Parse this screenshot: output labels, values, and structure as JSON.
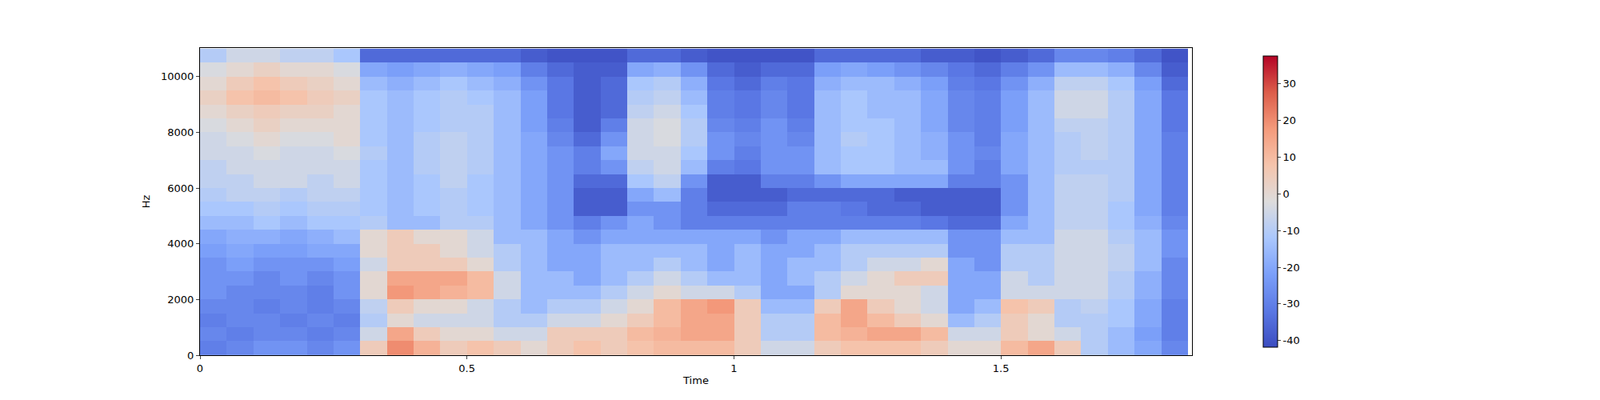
{
  "chart_data": {
    "type": "heatmap",
    "xlabel": "Time",
    "ylabel": "Hz",
    "xlim": [
      0,
      1.858
    ],
    "ylim": [
      0,
      11025
    ],
    "xticks": [
      0,
      0.5,
      1,
      1.5
    ],
    "yticks": [
      0,
      2000,
      4000,
      6000,
      8000,
      10000
    ],
    "zlim": [
      -41.8,
      37.6
    ],
    "zticks": [
      -40,
      -30,
      -20,
      -10,
      0,
      10,
      20,
      30
    ],
    "x": [
      0.025,
      0.075,
      0.125,
      0.175,
      0.225,
      0.275,
      0.325,
      0.375,
      0.425,
      0.475,
      0.525,
      0.575,
      0.625,
      0.675,
      0.725,
      0.775,
      0.825,
      0.875,
      0.925,
      0.975,
      1.025,
      1.075,
      1.125,
      1.175,
      1.225,
      1.275,
      1.325,
      1.375,
      1.425,
      1.475,
      1.525,
      1.575,
      1.625,
      1.675,
      1.725,
      1.775,
      1.825
    ],
    "y": [
      250,
      750,
      1250,
      1750,
      2250,
      2750,
      3250,
      3750,
      4250,
      4750,
      5250,
      5750,
      6250,
      6750,
      7250,
      7750,
      8250,
      8750,
      9250,
      9750,
      10250,
      10750
    ],
    "z": [
      [
        -30,
        -28,
        -25,
        -25,
        -28,
        -25,
        5,
        20,
        12,
        5,
        8,
        5,
        0,
        5,
        8,
        5,
        8,
        10,
        10,
        10,
        5,
        -5,
        -5,
        5,
        8,
        8,
        8,
        5,
        0,
        0,
        10,
        15,
        5,
        -10,
        -15,
        -20,
        -28
      ],
      [
        -28,
        -30,
        -28,
        -28,
        -30,
        -28,
        -5,
        15,
        5,
        0,
        0,
        -5,
        -5,
        5,
        5,
        5,
        10,
        12,
        15,
        15,
        5,
        -10,
        -10,
        10,
        12,
        15,
        15,
        10,
        -5,
        -5,
        5,
        0,
        -5,
        -10,
        -15,
        -22,
        -30
      ],
      [
        -30,
        -28,
        -28,
        -30,
        -28,
        -30,
        -10,
        0,
        -5,
        -5,
        -5,
        -10,
        -10,
        -5,
        -5,
        0,
        5,
        10,
        15,
        15,
        5,
        -10,
        -10,
        10,
        15,
        10,
        5,
        0,
        -15,
        -10,
        5,
        0,
        -10,
        -10,
        -12,
        -20,
        -30
      ],
      [
        -28,
        -28,
        -30,
        -28,
        -30,
        -28,
        -8,
        5,
        0,
        0,
        -5,
        -10,
        -15,
        -10,
        -10,
        -5,
        0,
        10,
        15,
        18,
        5,
        -15,
        -15,
        5,
        15,
        5,
        0,
        -5,
        -20,
        -15,
        8,
        5,
        -10,
        -8,
        -12,
        -20,
        -30
      ],
      [
        -25,
        -28,
        -28,
        -28,
        -30,
        -25,
        0,
        18,
        15,
        12,
        10,
        -5,
        -15,
        -15,
        -15,
        -10,
        -5,
        0,
        -5,
        -5,
        -10,
        -20,
        -20,
        -10,
        0,
        0,
        0,
        -5,
        -20,
        -20,
        -5,
        -5,
        -5,
        -5,
        -10,
        -18,
        -28
      ],
      [
        -25,
        -25,
        -28,
        -25,
        -28,
        -25,
        0,
        15,
        15,
        15,
        10,
        -5,
        -15,
        -15,
        -20,
        -15,
        -10,
        -5,
        -10,
        -15,
        -15,
        -20,
        -15,
        -10,
        -5,
        0,
        5,
        5,
        -20,
        -20,
        -5,
        -10,
        -5,
        -5,
        -10,
        -18,
        -28
      ],
      [
        -25,
        -22,
        -25,
        -25,
        -25,
        -22,
        -5,
        5,
        5,
        5,
        0,
        -10,
        -15,
        -20,
        -20,
        -15,
        -15,
        -10,
        -15,
        -20,
        -15,
        -20,
        -15,
        -15,
        -10,
        -5,
        -5,
        0,
        -20,
        -25,
        -10,
        -10,
        -5,
        -5,
        -8,
        -15,
        -28
      ],
      [
        -22,
        -20,
        -22,
        -22,
        -20,
        -20,
        0,
        5,
        5,
        0,
        -5,
        -10,
        -15,
        -20,
        -20,
        -15,
        -15,
        -15,
        -15,
        -20,
        -15,
        -20,
        -20,
        -15,
        -10,
        -10,
        -10,
        -10,
        -25,
        -25,
        -10,
        -10,
        -5,
        -5,
        -8,
        -15,
        -25
      ],
      [
        -20,
        -18,
        -18,
        -20,
        -18,
        -15,
        0,
        5,
        0,
        0,
        -5,
        -15,
        -15,
        -20,
        -25,
        -20,
        -20,
        -20,
        -20,
        -20,
        -20,
        -25,
        -20,
        -20,
        -15,
        -15,
        -15,
        -15,
        -25,
        -25,
        -15,
        -15,
        -5,
        -5,
        -10,
        -15,
        -25
      ],
      [
        -15,
        -15,
        -12,
        -15,
        -12,
        -12,
        -10,
        -15,
        -15,
        -10,
        -10,
        -15,
        -20,
        -25,
        -30,
        -25,
        -20,
        -25,
        -30,
        -30,
        -30,
        -30,
        -30,
        -30,
        -30,
        -30,
        -30,
        -32,
        -35,
        -35,
        -20,
        -15,
        -8,
        -8,
        -12,
        -18,
        -28
      ],
      [
        -12,
        -12,
        -10,
        -12,
        -10,
        -10,
        -12,
        -15,
        -12,
        -10,
        -12,
        -15,
        -20,
        -25,
        -38,
        -38,
        -25,
        -25,
        -30,
        -35,
        -35,
        -35,
        -30,
        -30,
        -32,
        -35,
        -35,
        -38,
        -38,
        -38,
        -25,
        -15,
        -8,
        -8,
        -12,
        -20,
        -30
      ],
      [
        -10,
        -8,
        -8,
        -10,
        -8,
        -8,
        -12,
        -15,
        -12,
        -10,
        -12,
        -15,
        -20,
        -25,
        -38,
        -38,
        -20,
        -15,
        -30,
        -38,
        -38,
        -38,
        -35,
        -35,
        -35,
        -35,
        -38,
        -38,
        -38,
        -38,
        -25,
        -15,
        -8,
        -8,
        -10,
        -20,
        -30
      ],
      [
        -8,
        -8,
        -5,
        -5,
        -8,
        -5,
        -12,
        -15,
        -12,
        -8,
        -12,
        -15,
        -20,
        -25,
        -35,
        -35,
        -12,
        -8,
        -25,
        -38,
        -38,
        -30,
        -30,
        -25,
        -20,
        -20,
        -20,
        -20,
        -30,
        -30,
        -25,
        -15,
        -8,
        -8,
        -10,
        -20,
        -30
      ],
      [
        -8,
        -5,
        -5,
        -5,
        -5,
        -5,
        -12,
        -15,
        -10,
        -8,
        -10,
        -15,
        -20,
        -25,
        -30,
        -25,
        -8,
        -5,
        -15,
        -30,
        -32,
        -25,
        -25,
        -15,
        -12,
        -12,
        -15,
        -15,
        -25,
        -30,
        -20,
        -15,
        -10,
        -10,
        -10,
        -20,
        -30
      ],
      [
        -5,
        -5,
        -3,
        -5,
        -5,
        -3,
        -10,
        -15,
        -10,
        -8,
        -10,
        -15,
        -20,
        -25,
        -30,
        -20,
        -5,
        -5,
        -12,
        -25,
        -30,
        -25,
        -25,
        -15,
        -12,
        -12,
        -15,
        -18,
        -25,
        -28,
        -20,
        -15,
        -10,
        -8,
        -10,
        -20,
        -30
      ],
      [
        -5,
        -3,
        0,
        -3,
        -3,
        0,
        -12,
        -15,
        -10,
        -8,
        -10,
        -15,
        -20,
        -28,
        -35,
        -25,
        -5,
        -3,
        -10,
        -25,
        -28,
        -25,
        -28,
        -15,
        -10,
        -12,
        -15,
        -18,
        -25,
        -30,
        -20,
        -15,
        -10,
        -8,
        -10,
        -20,
        -30
      ],
      [
        -3,
        0,
        3,
        0,
        0,
        0,
        -12,
        -15,
        -12,
        -10,
        -10,
        -15,
        -22,
        -30,
        -38,
        -30,
        -5,
        -3,
        -10,
        -28,
        -30,
        -25,
        -30,
        -15,
        -12,
        -12,
        -15,
        -20,
        -28,
        -30,
        -22,
        -15,
        -8,
        -8,
        -10,
        -20,
        -32
      ],
      [
        0,
        3,
        5,
        3,
        3,
        0,
        -12,
        -15,
        -12,
        -10,
        -10,
        -15,
        -22,
        -32,
        -38,
        -35,
        -8,
        -5,
        -12,
        -30,
        -32,
        -28,
        -32,
        -15,
        -12,
        -15,
        -15,
        -20,
        -28,
        -30,
        -22,
        -15,
        -5,
        -5,
        -10,
        -20,
        -32
      ],
      [
        3,
        8,
        10,
        8,
        5,
        3,
        -12,
        -15,
        -12,
        -10,
        -12,
        -15,
        -22,
        -32,
        -38,
        -35,
        -10,
        -8,
        -15,
        -30,
        -32,
        -28,
        -32,
        -15,
        -12,
        -15,
        -15,
        -20,
        -28,
        -30,
        -22,
        -15,
        -5,
        -5,
        -10,
        -20,
        -32
      ],
      [
        0,
        5,
        8,
        5,
        3,
        0,
        -15,
        -18,
        -15,
        -12,
        -15,
        -18,
        -25,
        -32,
        -38,
        -35,
        -12,
        -10,
        -18,
        -32,
        -35,
        -30,
        -32,
        -18,
        -15,
        -15,
        -18,
        -22,
        -30,
        -32,
        -25,
        -18,
        -8,
        -8,
        -12,
        -22,
        -35
      ],
      [
        -3,
        0,
        3,
        0,
        0,
        -3,
        -20,
        -22,
        -20,
        -18,
        -20,
        -22,
        -30,
        -35,
        -38,
        -38,
        -20,
        -18,
        -25,
        -35,
        -38,
        -35,
        -35,
        -22,
        -20,
        -22,
        -25,
        -28,
        -32,
        -35,
        -30,
        -25,
        -15,
        -15,
        -18,
        -28,
        -38
      ],
      [
        -10,
        -5,
        -5,
        -8,
        -8,
        -12,
        -35,
        -35,
        -35,
        -35,
        -35,
        -35,
        -38,
        -40,
        -40,
        -40,
        -35,
        -35,
        -38,
        -40,
        -40,
        -40,
        -40,
        -35,
        -35,
        -35,
        -35,
        -38,
        -38,
        -40,
        -38,
        -35,
        -28,
        -28,
        -30,
        -35,
        -40
      ]
    ]
  }
}
